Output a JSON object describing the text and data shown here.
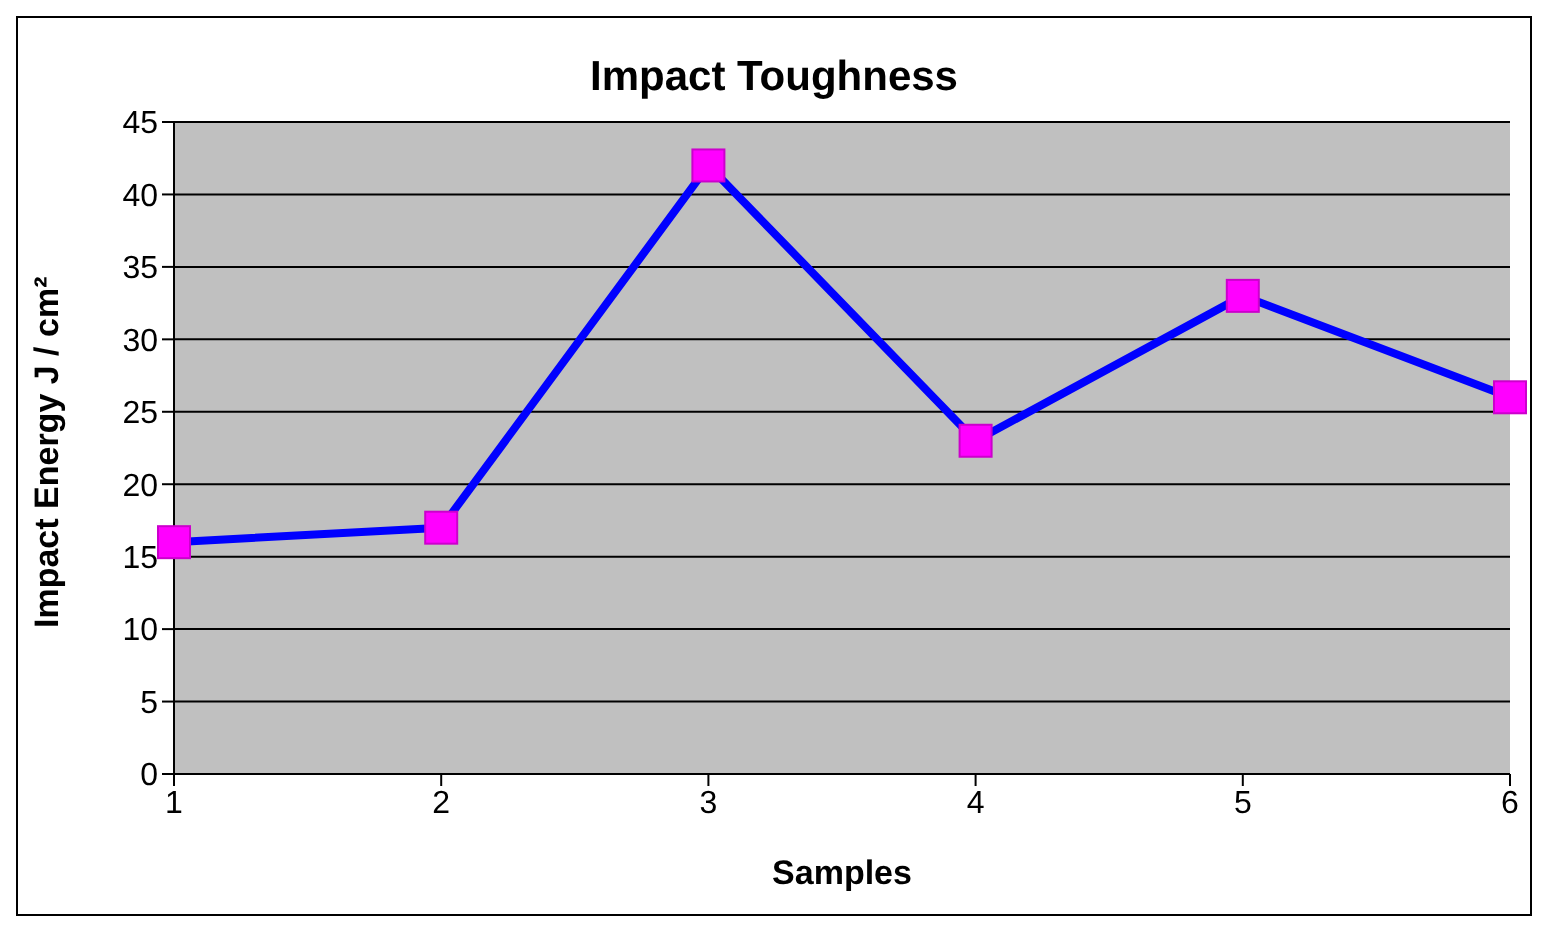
{
  "chart_data": {
    "type": "line",
    "title": "Impact Toughness",
    "xlabel": "Samples",
    "ylabel": "Impact Energy J / cm²",
    "categories": [
      "1",
      "2",
      "3",
      "4",
      "5",
      "6"
    ],
    "series": [
      {
        "color": "#0000ff",
        "values": [
          16,
          17,
          42,
          23,
          33,
          26
        ]
      }
    ],
    "ylim": [
      0,
      45
    ],
    "yticks": [
      0,
      5,
      10,
      15,
      20,
      25,
      30,
      35,
      40,
      45
    ],
    "grid": "y",
    "legend": false,
    "marker": "square",
    "line_style": "solid"
  }
}
